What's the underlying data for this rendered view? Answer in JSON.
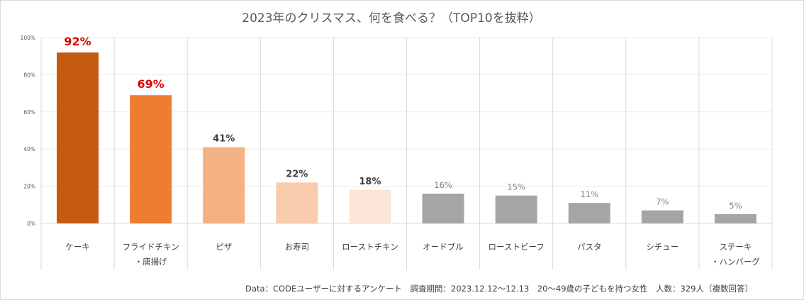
{
  "chart_data": {
    "type": "bar",
    "title": "2023年のクリスマス、何を食べる？（TOP10を抜粋）",
    "categories": [
      [
        "ケーキ"
      ],
      [
        "フライドチキン",
        "・唐揚げ"
      ],
      [
        "ピザ"
      ],
      [
        "お寿司"
      ],
      [
        "ローストチキン"
      ],
      [
        "オードブル"
      ],
      [
        "ローストビーフ"
      ],
      [
        "パスタ"
      ],
      [
        "シチュー"
      ],
      [
        "ステーキ",
        "・ハンバーグ"
      ]
    ],
    "values": [
      92,
      69,
      41,
      22,
      18,
      16,
      15,
      11,
      7,
      5
    ],
    "value_labels": [
      "92%",
      "69%",
      "41%",
      "22%",
      "18%",
      "16%",
      "15%",
      "11%",
      "7%",
      "5%"
    ],
    "bar_colors": [
      "#c55a11",
      "#ed7d31",
      "#f4b183",
      "#f8cbad",
      "#fbe5d6",
      "#a5a5a5",
      "#a5a5a5",
      "#a5a5a5",
      "#a5a5a5",
      "#a5a5a5"
    ],
    "label_colors": [
      "#e00000",
      "#e00000",
      "#404040",
      "#404040",
      "#404040",
      "#7f7f7f",
      "#7f7f7f",
      "#7f7f7f",
      "#7f7f7f",
      "#7f7f7f"
    ],
    "ylim": [
      0,
      100
    ],
    "yticks": [
      0,
      20,
      40,
      60,
      80,
      100
    ],
    "ytick_labels": [
      "0%",
      "20%",
      "40%",
      "60%",
      "80%",
      "100%"
    ],
    "xlabel": "",
    "ylabel": "",
    "source_note": "Data：CODEユーザーに対するアンケート　調査期間：2023.12.12～12.13　20～49歳の子どもを持つ女性　人数：329人（複数回答）"
  }
}
